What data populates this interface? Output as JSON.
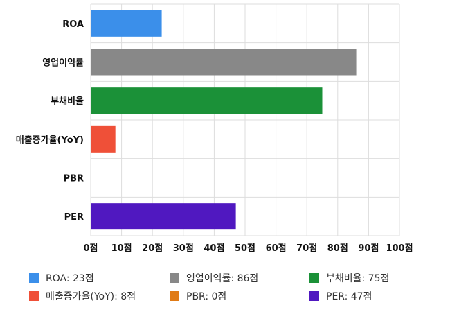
{
  "chart_data": {
    "type": "bar",
    "orientation": "horizontal",
    "categories": [
      "ROA",
      "영업이익률",
      "부채비율",
      "매출증가율(YoY)",
      "PBR",
      "PER"
    ],
    "values": [
      23,
      86,
      75,
      8,
      0,
      47
    ],
    "colors": [
      "#3b8fea",
      "#888888",
      "#1b9138",
      "#ef5038",
      "#e07b16",
      "#5018c0"
    ],
    "xlim": [
      0,
      100
    ],
    "xticks": [
      "0점",
      "10점",
      "20점",
      "30점",
      "40점",
      "50점",
      "60점",
      "70점",
      "80점",
      "90점",
      "100점"
    ],
    "grid": true,
    "legend_position": "bottom",
    "legend": [
      "ROA: 23점",
      "영업이익률: 86점",
      "부채비율: 75점",
      "매출증가율(YoY): 8점",
      "PBR: 0점",
      "PER: 47점"
    ]
  }
}
